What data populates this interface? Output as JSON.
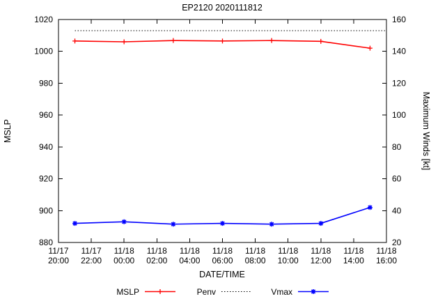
{
  "chart_data": {
    "type": "line",
    "title": "EP2120 2020111812",
    "xlabel": "DATE/TIME",
    "ylabel_left": "MSLP",
    "ylabel_right": "Maximum Winds [kt]",
    "xlim": [
      0,
      20
    ],
    "ylim_left": [
      880,
      1020
    ],
    "ylim_right": [
      20,
      160
    ],
    "yticks_left": [
      880,
      900,
      920,
      940,
      960,
      980,
      1000,
      1020
    ],
    "yticks_right": [
      20,
      40,
      60,
      80,
      100,
      120,
      140,
      160
    ],
    "grid": false,
    "legend_position": "bottom-center",
    "background": "#ffffff",
    "x_ticks": [
      {
        "hour": 0,
        "date": "11/17",
        "time": "20:00"
      },
      {
        "hour": 2,
        "date": "11/17",
        "time": "22:00"
      },
      {
        "hour": 4,
        "date": "11/18",
        "time": "00:00"
      },
      {
        "hour": 6,
        "date": "11/18",
        "time": "02:00"
      },
      {
        "hour": 8,
        "date": "11/18",
        "time": "04:00"
      },
      {
        "hour": 10,
        "date": "11/18",
        "time": "06:00"
      },
      {
        "hour": 12,
        "date": "11/18",
        "time": "08:00"
      },
      {
        "hour": 14,
        "date": "11/18",
        "time": "10:00"
      },
      {
        "hour": 16,
        "date": "11/18",
        "time": "12:00"
      },
      {
        "hour": 18,
        "date": "11/18",
        "time": "14:00"
      },
      {
        "hour": 20,
        "date": "11/18",
        "time": "16:00"
      }
    ],
    "series": [
      {
        "name": "MSLP",
        "axis": "left",
        "color": "#ff0000",
        "marker": "plus",
        "line": "solid",
        "x": [
          1,
          4,
          7,
          10,
          13,
          16,
          19
        ],
        "y": [
          1006.5,
          1006.0,
          1006.8,
          1006.5,
          1006.8,
          1006.3,
          1002.0
        ]
      },
      {
        "name": "Penv",
        "axis": "left",
        "color": "#000000",
        "marker": "none",
        "line": "dotted",
        "x": [
          1,
          20
        ],
        "y": [
          1013,
          1013
        ]
      },
      {
        "name": "Vmax",
        "axis": "right",
        "color": "#0000ff",
        "marker": "asterisk",
        "line": "solid",
        "x": [
          1,
          4,
          7,
          10,
          13,
          16,
          19
        ],
        "y": [
          32,
          33,
          31.5,
          32,
          31.5,
          32,
          42
        ]
      }
    ]
  }
}
